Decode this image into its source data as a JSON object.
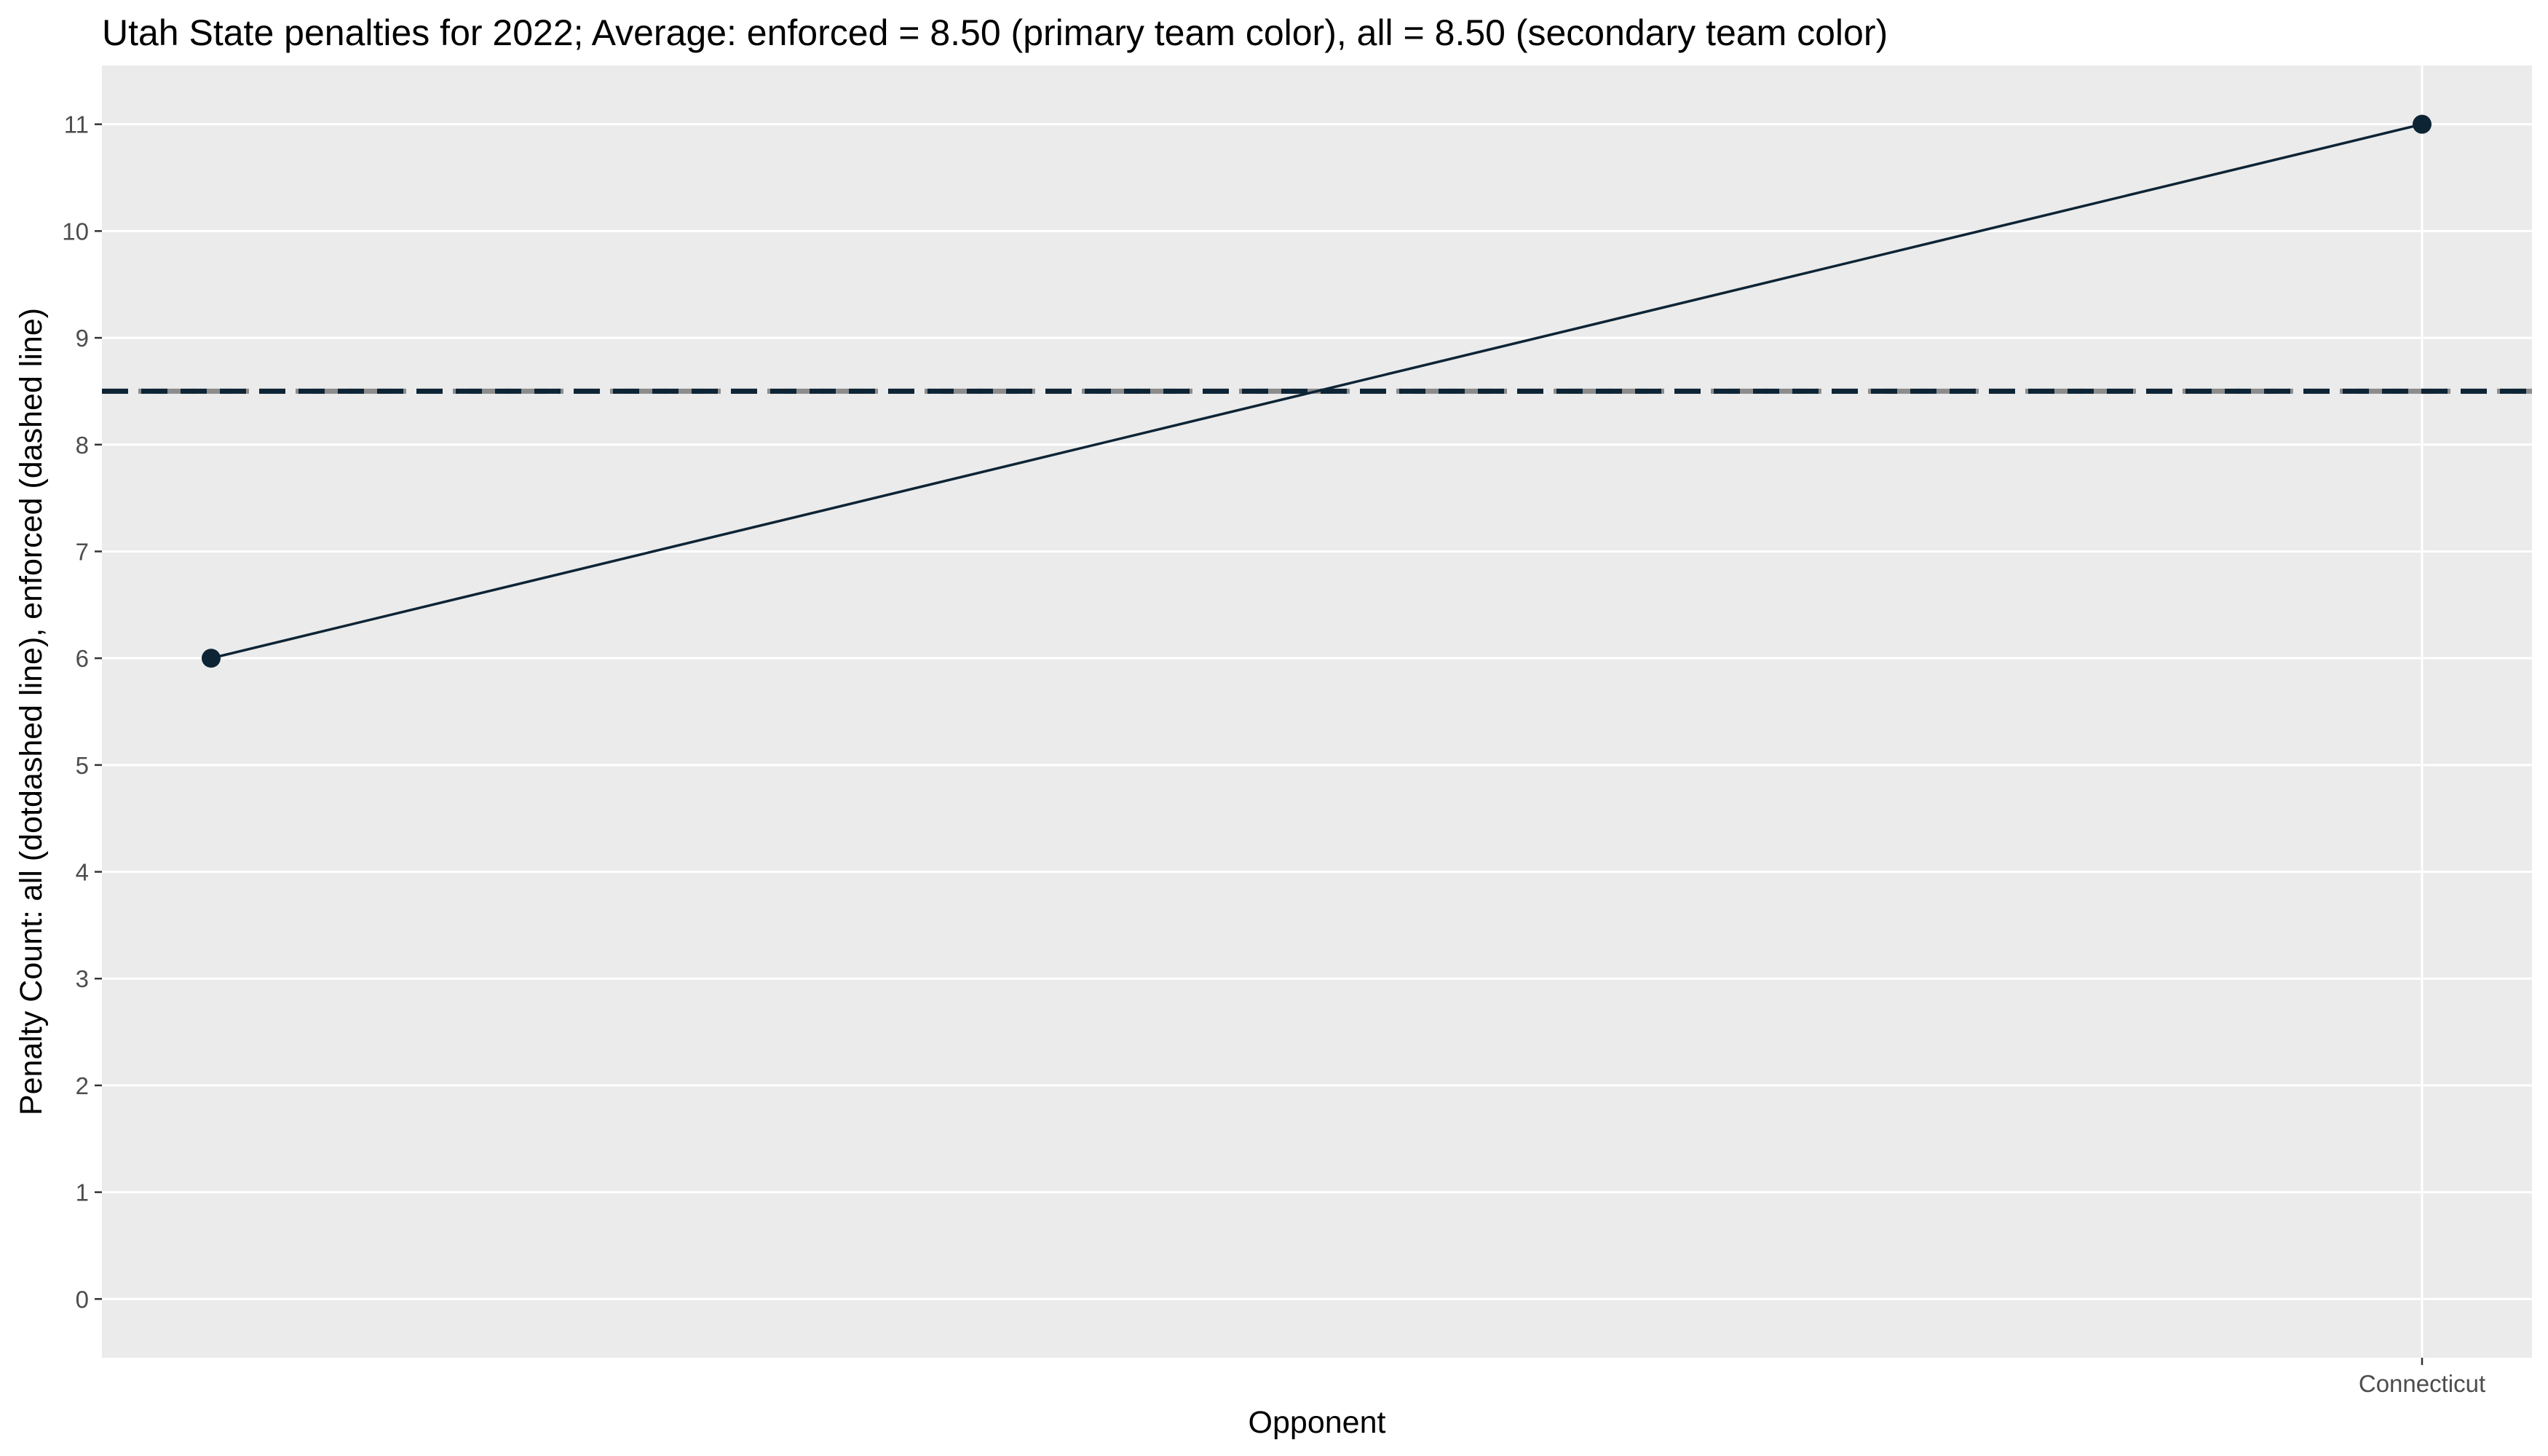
{
  "chart_data": {
    "type": "line",
    "title": "Utah State penalties for 2022; Average: enforced = 8.50 (primary team color), all = 8.50 (secondary team color)",
    "xlabel": "Opponent",
    "ylabel": "Penalty Count: all (dotdashed line), enforced (dashed line)",
    "x_categories": [
      "",
      "Connecticut"
    ],
    "x_tick_labels": [
      "Connecticut"
    ],
    "series": [
      {
        "values": [
          6,
          11
        ]
      }
    ],
    "reference_lines": [
      {
        "y": 8.5,
        "style": "dotdashed",
        "color": "#8c8c8c"
      },
      {
        "y": 8.5,
        "style": "dashed",
        "color": "#0d2435"
      }
    ],
    "yticks": [
      0,
      1,
      2,
      3,
      4,
      5,
      6,
      7,
      8,
      9,
      10,
      11
    ],
    "ylim": [
      -0.55,
      11.55
    ],
    "grid": true,
    "colors": {
      "primary": "#0d2435",
      "secondary": "#8c8c8c",
      "panel_background": "#ebebeb",
      "gridline": "#ffffff"
    }
  }
}
